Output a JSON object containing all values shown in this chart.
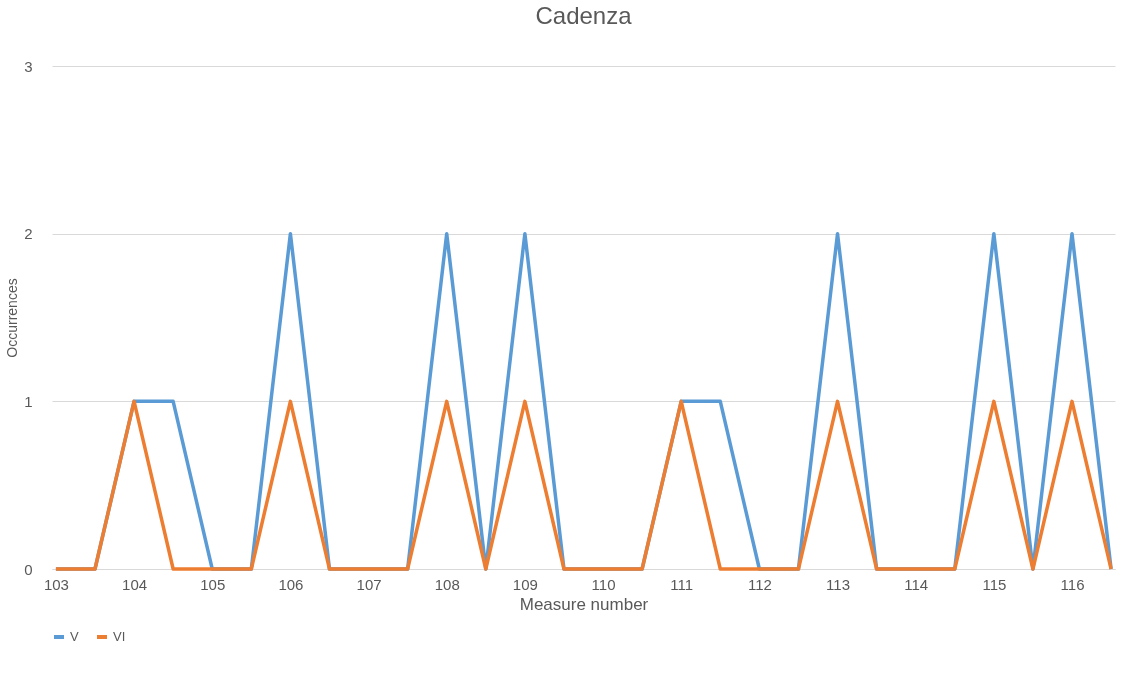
{
  "chart_data": {
    "type": "line",
    "title": "Cadenza",
    "xlabel": "Measure number",
    "ylabel": "Occurrences",
    "categories": [
      "103",
      null,
      "104",
      null,
      "105",
      null,
      "106",
      null,
      "107",
      null,
      "108",
      null,
      "109",
      null,
      "110",
      null,
      "111",
      null,
      "112",
      null,
      "113",
      null,
      "114",
      null,
      "115",
      null,
      "116",
      null
    ],
    "series": [
      {
        "name": "V",
        "color": "#5b9bd5",
        "values": [
          0,
          0,
          1,
          1,
          0,
          0,
          2,
          0,
          0,
          0,
          2,
          0,
          2,
          0,
          0,
          0,
          1,
          1,
          0,
          0,
          2,
          0,
          0,
          0,
          2,
          0,
          2,
          0
        ]
      },
      {
        "name": "VI",
        "color": "#ed7d31",
        "values": [
          0,
          0,
          1,
          0,
          0,
          0,
          1,
          0,
          0,
          0,
          1,
          0,
          1,
          0,
          0,
          0,
          1,
          0,
          0,
          0,
          1,
          0,
          0,
          0,
          1,
          0,
          1,
          0
        ]
      }
    ],
    "ylim": [
      0,
      3
    ],
    "yticks": [
      0,
      1,
      2,
      3
    ],
    "grid": "y",
    "legend": "bottom",
    "marker": "none",
    "line_style": "solid"
  }
}
